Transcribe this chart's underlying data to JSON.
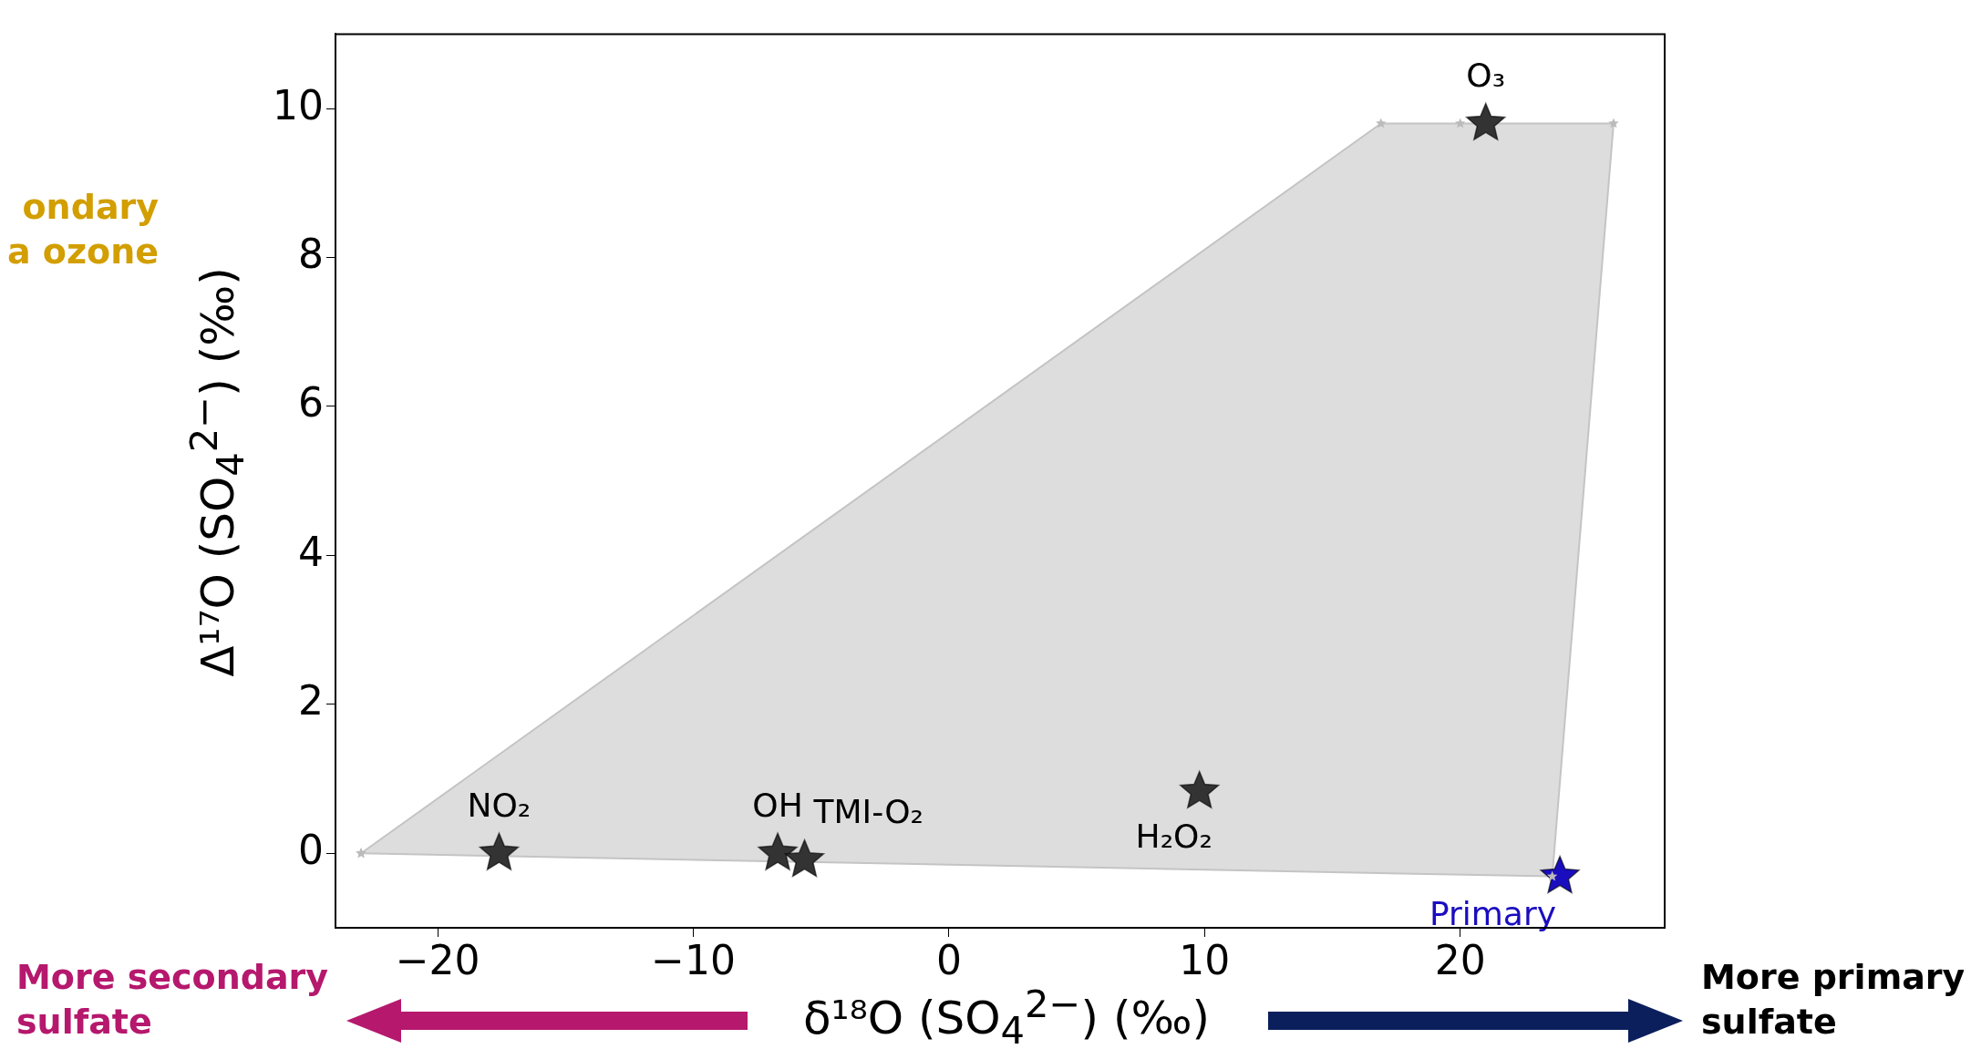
{
  "chart_data": {
    "type": "scatter",
    "xlabel": "δ¹⁸O (SO$_{4}$$^{2−}$) (‰)",
    "ylabel": "Δ¹⁷O (SO$_{4}$$^{2−}$) (‰)",
    "xlim": [
      -24,
      28
    ],
    "xticks": [
      -20,
      -10,
      0,
      10,
      20
    ],
    "ylim": [
      -1,
      11
    ],
    "yticks": [
      0,
      2,
      4,
      6,
      8,
      10
    ],
    "marker": "star",
    "series": [
      {
        "type": "area",
        "color": "#dddddd",
        "x": [
          -23.0,
          16.9,
          20.0,
          26.0,
          23.6,
          -23.0
        ],
        "values": [
          0,
          9.8,
          9.8,
          9.8,
          -0.31,
          0
        ]
      },
      {
        "type": "scatter",
        "color": "#333333",
        "x": [
          -17.6,
          -6.7,
          -5.65,
          9.8,
          21.0
        ],
        "values": [
          0,
          0,
          -0.09,
          0.83,
          9.8
        ]
      },
      {
        "type": "scatter",
        "name": "Primary",
        "color": "#1a0dbf",
        "x": [
          23.9
        ],
        "values": [
          -0.31
        ]
      }
    ],
    "annotations": [
      {
        "text": "NO₂",
        "x": -17.6,
        "y": 0
      },
      {
        "text": "OH",
        "x": -6.7,
        "y": 0
      },
      {
        "text": "TMI-O₂",
        "x": -5.65,
        "y": -0.09
      },
      {
        "text": "H₂O₂",
        "x": 9.8,
        "y": 0.83
      },
      {
        "text": "O₃",
        "x": 21.0,
        "y": 9.8
      },
      "ondary\na ozone",
      "More secondary\nsulfate",
      "More primary\nsulfate"
    ]
  }
}
